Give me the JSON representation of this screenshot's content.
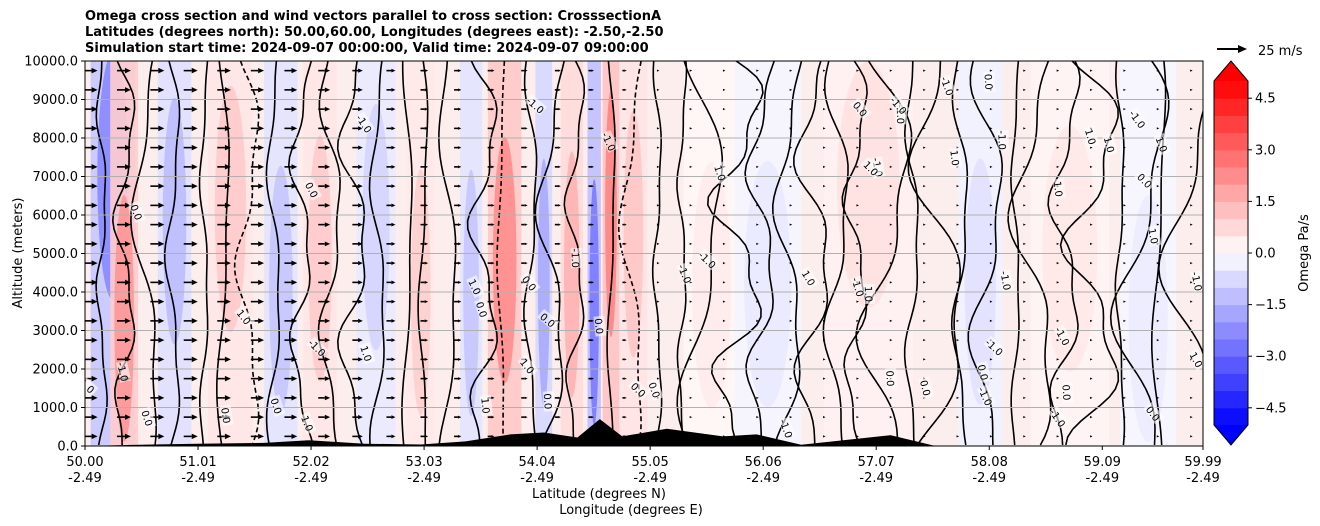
{
  "chart_data": {
    "type": "contour",
    "title_lines": [
      "Omega cross section and wind vectors parallel to cross section: CrosssectionA",
      "Latitudes (degrees north): 50.00,60.00, Longitudes (degrees east): -2.50,-2.50",
      "Simulation start time: 2024-09-07 00:00:00, Valid time: 2024-09-07 09:00:00"
    ],
    "xlabel_lines": [
      "Latitude (degrees N)",
      "Longitude (degrees E)"
    ],
    "ylabel": "Altitude (meters)",
    "x_ticks": [
      {
        "lat": "50.00",
        "lon": "-2.49",
        "v": 50.0
      },
      {
        "lat": "51.01",
        "lon": "-2.49",
        "v": 51.01
      },
      {
        "lat": "52.02",
        "lon": "-2.49",
        "v": 52.02
      },
      {
        "lat": "53.03",
        "lon": "-2.49",
        "v": 53.03
      },
      {
        "lat": "54.04",
        "lon": "-2.49",
        "v": 54.04
      },
      {
        "lat": "55.05",
        "lon": "-2.49",
        "v": 55.05
      },
      {
        "lat": "56.06",
        "lon": "-2.49",
        "v": 56.06
      },
      {
        "lat": "57.07",
        "lon": "-2.49",
        "v": 57.07
      },
      {
        "lat": "58.08",
        "lon": "-2.49",
        "v": 58.08
      },
      {
        "lat": "59.09",
        "lon": "-2.49",
        "v": 59.09
      },
      {
        "lat": "59.99",
        "lon": "-2.49",
        "v": 59.99
      }
    ],
    "xlim": [
      50.0,
      59.99
    ],
    "y_ticks": [
      "0.0",
      "1000.0",
      "2000.0",
      "3000.0",
      "4000.0",
      "5000.0",
      "6000.0",
      "7000.0",
      "8000.0",
      "9000.0",
      "10000.0"
    ],
    "ylim": [
      0,
      10000
    ],
    "colorbar": {
      "label": "Omega Pa/s",
      "ticks": [
        "4.5",
        "3.0",
        "1.5",
        "0.0",
        "−1.5",
        "−3.0",
        "−4.5"
      ],
      "range": [
        -5.0,
        5.0
      ],
      "colors": {
        "positive": "#ff0000",
        "negative": "#0000ff",
        "neutral": "#ffffff"
      }
    },
    "quiver_key": {
      "label": "25 m/s"
    },
    "contour_labels": [
      "0.0",
      "1.0",
      "-1.0"
    ],
    "bands": [
      {
        "x": 50.25,
        "w": 0.4,
        "v": -2.5
      },
      {
        "x": 50.35,
        "w": 0.25,
        "v": 2.2
      },
      {
        "x": 50.8,
        "w": 0.3,
        "v": -1.4
      },
      {
        "x": 51.3,
        "w": 0.4,
        "v": 1.1
      },
      {
        "x": 51.75,
        "w": 0.3,
        "v": -1.2
      },
      {
        "x": 52.1,
        "w": 0.3,
        "v": 1.1
      },
      {
        "x": 52.6,
        "w": 0.35,
        "v": -0.9
      },
      {
        "x": 53.0,
        "w": 0.25,
        "v": 1.0
      },
      {
        "x": 53.45,
        "w": 0.2,
        "v": -1.2
      },
      {
        "x": 53.75,
        "w": 0.3,
        "v": 2.4
      },
      {
        "x": 54.1,
        "w": 0.15,
        "v": -1.8
      },
      {
        "x": 54.35,
        "w": 0.2,
        "v": 1.6
      },
      {
        "x": 54.55,
        "w": 0.12,
        "v": -2.8
      },
      {
        "x": 54.7,
        "w": 0.15,
        "v": 2.6
      },
      {
        "x": 54.9,
        "w": 0.25,
        "v": 1.2
      },
      {
        "x": 55.6,
        "w": 0.5,
        "v": 0.4
      },
      {
        "x": 56.1,
        "w": 0.6,
        "v": -0.45
      },
      {
        "x": 57.0,
        "w": 0.8,
        "v": 0.6
      },
      {
        "x": 58.0,
        "w": 0.4,
        "v": -0.6
      },
      {
        "x": 58.8,
        "w": 0.7,
        "v": 0.5
      },
      {
        "x": 59.5,
        "w": 0.5,
        "v": -0.4
      }
    ],
    "wind_profile": [
      {
        "lat": 50.0,
        "u": 1.0
      },
      {
        "lat": 51.0,
        "u": 1.0
      },
      {
        "lat": 52.0,
        "u": 0.9
      },
      {
        "lat": 53.0,
        "u": 0.55
      },
      {
        "lat": 54.5,
        "u": 0.4
      },
      {
        "lat": 55.5,
        "u": 0.1
      },
      {
        "lat": 56.5,
        "u": 0.1
      },
      {
        "lat": 59.99,
        "u": 0.02
      }
    ],
    "terrain": [
      {
        "lat": 50.0,
        "z": 0
      },
      {
        "lat": 50.6,
        "z": 40
      },
      {
        "lat": 51.0,
        "z": 60
      },
      {
        "lat": 51.6,
        "z": 80
      },
      {
        "lat": 52.0,
        "z": 150
      },
      {
        "lat": 52.5,
        "z": 60
      },
      {
        "lat": 53.0,
        "z": 40
      },
      {
        "lat": 53.4,
        "z": 120
      },
      {
        "lat": 53.8,
        "z": 300
      },
      {
        "lat": 54.1,
        "z": 350
      },
      {
        "lat": 54.4,
        "z": 220
      },
      {
        "lat": 54.6,
        "z": 700
      },
      {
        "lat": 54.8,
        "z": 250
      },
      {
        "lat": 55.2,
        "z": 450
      },
      {
        "lat": 55.7,
        "z": 250
      },
      {
        "lat": 56.0,
        "z": 300
      },
      {
        "lat": 56.4,
        "z": 30
      },
      {
        "lat": 57.2,
        "z": 280
      },
      {
        "lat": 57.6,
        "z": 0
      },
      {
        "lat": 59.99,
        "z": 0
      }
    ]
  }
}
